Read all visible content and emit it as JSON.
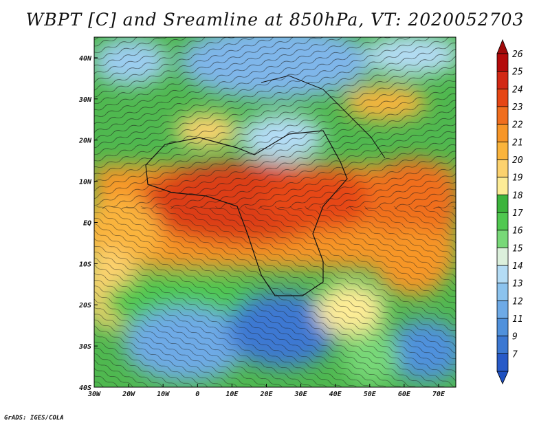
{
  "title": "WBPT [C] and Sreamline at 850hPa, VT: 2020052703",
  "credit": "GrADS: IGES/COLA",
  "axes": {
    "lon_labels": [
      "30W",
      "20W",
      "10W",
      "0",
      "10E",
      "20E",
      "30E",
      "40E",
      "50E",
      "60E",
      "70E"
    ],
    "lon_values": [
      -30,
      -20,
      -10,
      0,
      10,
      20,
      30,
      40,
      50,
      60,
      70
    ],
    "lat_labels": [
      "40N",
      "30N",
      "20N",
      "10N",
      "EQ",
      "10S",
      "20S",
      "30S",
      "40S"
    ],
    "lat_values": [
      40,
      30,
      20,
      10,
      0,
      -10,
      -20,
      -30,
      -40
    ],
    "lon_range": [
      -30,
      75
    ],
    "lat_range": [
      -40,
      45
    ]
  },
  "colorbar": {
    "labels": [
      "26",
      "25",
      "24",
      "23",
      "22",
      "21",
      "20",
      "19",
      "18",
      "17",
      "16",
      "15",
      "14",
      "13",
      "12",
      "11",
      "9",
      "7"
    ],
    "colors": [
      "#b40a0a",
      "#d22814",
      "#e64614",
      "#f06e1e",
      "#f79628",
      "#fab43c",
      "#fcd26e",
      "#fdec96",
      "#3cb43c",
      "#50c850",
      "#78d878",
      "#dcf0dc",
      "#b4dcf5",
      "#8cc3ee",
      "#6eaae6",
      "#5091dc",
      "#3c78d2",
      "#285ac8"
    ]
  },
  "map_colors": {
    "ocean_cool": "#5a9be6",
    "green": "#46be46",
    "warm": "#f08c2d",
    "hot": "#dc3c14",
    "streamline": "#1a1a1a"
  }
}
